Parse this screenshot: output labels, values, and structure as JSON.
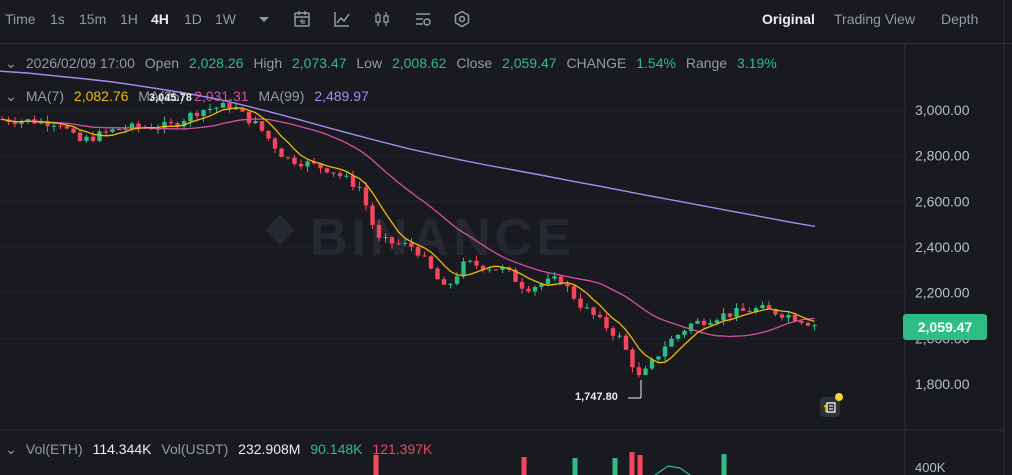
{
  "toolbar": {
    "items": [
      {
        "label": "Time"
      },
      {
        "label": "1s"
      },
      {
        "label": "15m"
      },
      {
        "label": "1H"
      },
      {
        "label": "4H",
        "active": true
      },
      {
        "label": "1D"
      },
      {
        "label": "1W"
      }
    ],
    "icons": [
      "dropdown-caret-icon",
      "calendar-icon",
      "indicator-icon",
      "candle-type-icon",
      "settings-list-icon",
      "hexagon-settings-icon"
    ],
    "views": [
      {
        "label": "Original",
        "active": true
      },
      {
        "label": "Trading View"
      },
      {
        "label": "Depth"
      }
    ]
  },
  "ohlc": {
    "date": "2026/02/09 17:00",
    "open_label": "Open",
    "open": "2,028.26",
    "high_label": "High",
    "high": "2,073.47",
    "low_label": "Low",
    "low": "2,008.62",
    "close_label": "Close",
    "close": "2,059.47",
    "change_label": "CHANGE",
    "change": "1.54%",
    "range_label": "Range",
    "range": "3.19%"
  },
  "ma": {
    "ma7_label": "MA(7)",
    "ma7": "2,082.76",
    "ma25_label": "MA(25)",
    "ma25": "2,031.31",
    "ma99_label": "MA(99)",
    "ma99": "2,489.97"
  },
  "vol": {
    "eth_label": "Vol(ETH)",
    "eth": "114.344K",
    "usdt_label": "Vol(USDT)",
    "usdt": "232.908M",
    "v1": "90.148K",
    "v2": "121.397K"
  },
  "current_price": "2,059.47",
  "markers": {
    "high": "3,045.78",
    "low": "1,747.80"
  },
  "colors": {
    "up": "#2ebd85",
    "down": "#f6465d",
    "ma7": "#f0b90b",
    "ma25": "#d64fa7",
    "ma99": "#a68cf0",
    "bg": "#181a20"
  },
  "chart_data": {
    "type": "candlestick",
    "y_ticks": [
      "1,800.00",
      "2,000.00",
      "2,200.00",
      "2,400.00",
      "2,600.00",
      "2,800.00",
      "3,000.00"
    ],
    "vol_tick": "400K",
    "ylim": [
      1700,
      3150
    ],
    "ma99": [
      3170,
      3162,
      3150,
      3138,
      3125,
      3108,
      3090,
      3070,
      3048,
      3020,
      2990,
      2958,
      2925,
      2893,
      2862,
      2832,
      2805,
      2780,
      2757,
      2735,
      2713,
      2690,
      2668,
      2645,
      2622,
      2600,
      2578,
      2555,
      2533,
      2511,
      2490
    ]
  }
}
